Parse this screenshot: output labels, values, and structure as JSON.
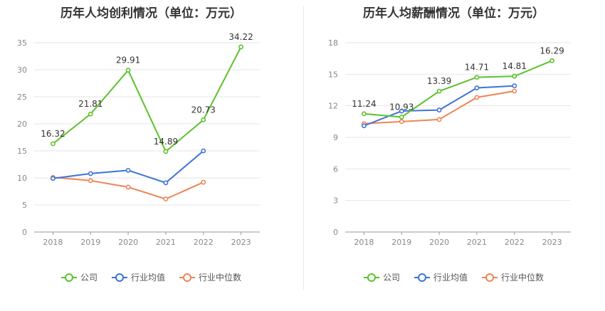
{
  "colors": {
    "company": "#5cc22b",
    "industry_avg": "#3b74d6",
    "industry_median": "#ee8455"
  },
  "legend": {
    "company": "公司",
    "industry_avg": "行业均值",
    "industry_median": "行业中位数"
  },
  "chart_data": [
    {
      "type": "line",
      "title": "历年人均创利情况（单位：万元）",
      "categories": [
        "2018",
        "2019",
        "2020",
        "2021",
        "2022",
        "2023"
      ],
      "ylim": [
        0,
        35
      ],
      "yticks": [
        "0",
        "5",
        "10",
        "15",
        "20",
        "25",
        "30",
        "35"
      ],
      "grid": true,
      "legend_position": "bottom",
      "series": [
        {
          "name": "公司",
          "key": "company",
          "values": [
            16.32,
            21.81,
            29.91,
            14.89,
            20.73,
            34.22
          ],
          "labels": [
            "16.32",
            "21.81",
            "29.91",
            "14.89",
            "20.73",
            "34.22"
          ]
        },
        {
          "name": "行业均值",
          "key": "industry_avg",
          "values": [
            9.9,
            10.8,
            11.4,
            9.1,
            15.0,
            null
          ]
        },
        {
          "name": "行业中位数",
          "key": "industry_median",
          "values": [
            10.1,
            9.5,
            8.3,
            6.1,
            9.2,
            null
          ]
        }
      ]
    },
    {
      "type": "line",
      "title": "历年人均薪酬情况（单位：万元）",
      "categories": [
        "2018",
        "2019",
        "2020",
        "2021",
        "2022",
        "2023"
      ],
      "ylim": [
        0,
        18
      ],
      "yticks": [
        "0",
        "3",
        "6",
        "9",
        "12",
        "15",
        "18"
      ],
      "grid": true,
      "legend_position": "bottom",
      "series": [
        {
          "name": "公司",
          "key": "company",
          "values": [
            11.24,
            10.93,
            13.39,
            14.71,
            14.81,
            16.29
          ],
          "labels": [
            "11.24",
            "10.93",
            "13.39",
            "14.71",
            "14.81",
            "16.29"
          ]
        },
        {
          "name": "行业均值",
          "key": "industry_avg",
          "values": [
            10.1,
            11.5,
            11.6,
            13.7,
            13.9,
            null
          ]
        },
        {
          "name": "行业中位数",
          "key": "industry_median",
          "values": [
            10.3,
            10.5,
            10.7,
            12.8,
            13.4,
            null
          ]
        }
      ]
    }
  ]
}
